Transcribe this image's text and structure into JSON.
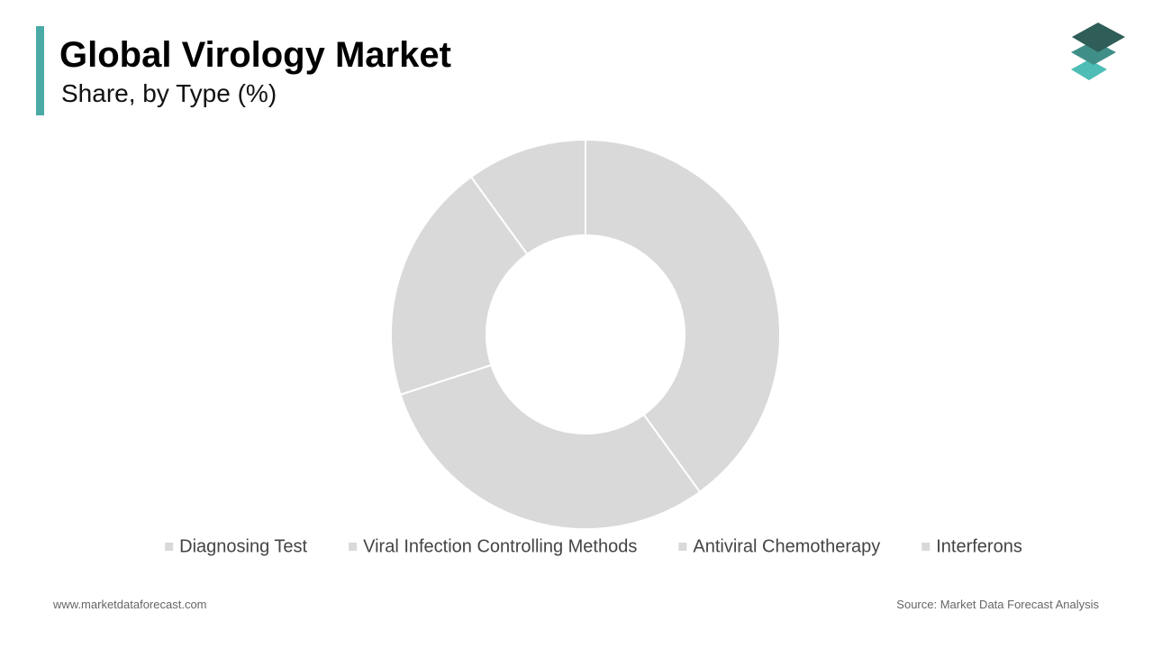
{
  "chart_data": {
    "type": "donut",
    "title": "Global Virology Market",
    "subtitle": "Share, by Type (%)",
    "categories": [
      "Diagnosing Test",
      "Viral Infection Controlling Methods",
      "Antiviral Chemotherapy",
      "Interferons"
    ],
    "values": [
      40,
      30,
      20,
      10
    ],
    "colors": [
      "#d9d9d9",
      "#d9d9d9",
      "#d9d9d9",
      "#d9d9d9"
    ],
    "legend": "bottom",
    "website": "www.marketdataforecast.com",
    "source": "Source: Market Data Forecast Analysis"
  }
}
